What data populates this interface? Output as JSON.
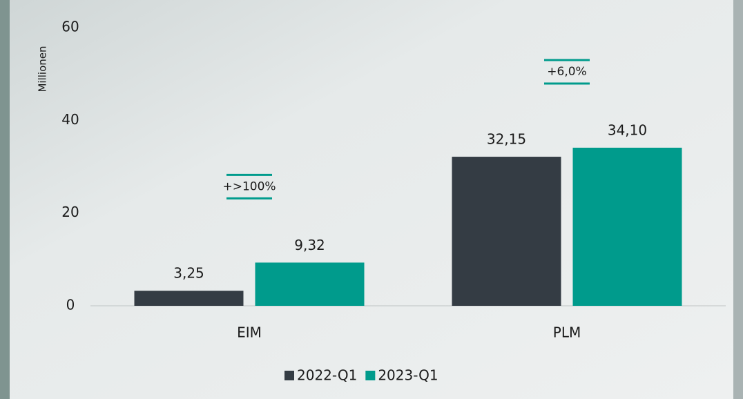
{
  "chart_data": {
    "type": "bar",
    "y_label": "Millionen",
    "categories": [
      "EIM",
      "PLM"
    ],
    "series": [
      {
        "name": "2022-Q1",
        "color": "#343c44",
        "values": [
          3.25,
          32.15
        ],
        "value_labels": [
          "3,25",
          "32,15"
        ]
      },
      {
        "name": "2023-Q1",
        "color": "#009b8c",
        "values": [
          9.32,
          34.1
        ],
        "value_labels": [
          "9,32",
          "34,10"
        ]
      }
    ],
    "annotations": [
      "+>100%",
      "+6,0%"
    ],
    "ylim": [
      0,
      60
    ],
    "yticks": [
      0,
      20,
      40,
      60
    ],
    "legend": "bottom"
  }
}
